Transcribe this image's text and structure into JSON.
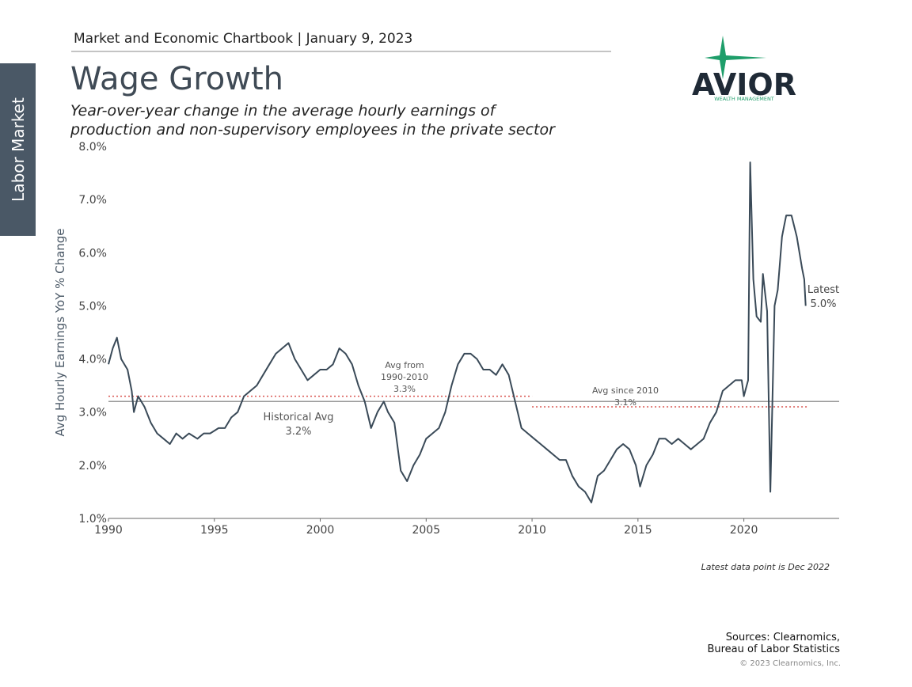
{
  "page": {
    "header": "Market and Economic Chartbook | January 9, 2023",
    "side_tab": "Labor Market",
    "title": "Wage Growth",
    "subtitle": [
      "Year-over-year change in the average hourly earnings of",
      "production and non-supervisory employees in the private sector"
    ],
    "logo": {
      "name": "AVIOR",
      "tagline": "WEALTH MANAGEMENT"
    },
    "footnote": "Latest data point is Dec 2022",
    "sources": [
      "Sources: Clearnomics,",
      "Bureau of Labor Statistics"
    ],
    "copyright": "© 2023 Clearnomics, Inc."
  },
  "chart_data": {
    "type": "line",
    "y_label": "Avg Hourly Earnings YoY % Change",
    "color": "#3a4a58",
    "x": [
      1990.0,
      1990.2,
      1990.4,
      1990.6,
      1990.9,
      1991.1,
      1991.2,
      1991.4,
      1991.7,
      1992.0,
      1992.3,
      1992.6,
      1992.9,
      1993.2,
      1993.5,
      1993.8,
      1994.2,
      1994.5,
      1994.8,
      1995.2,
      1995.5,
      1995.8,
      1996.1,
      1996.4,
      1996.7,
      1997.0,
      1997.3,
      1997.6,
      1997.9,
      1998.2,
      1998.5,
      1998.8,
      1999.1,
      1999.4,
      1999.7,
      2000.0,
      2000.3,
      2000.6,
      2000.9,
      2001.2,
      2001.5,
      2001.8,
      2002.1,
      2002.4,
      2002.7,
      2003.0,
      2003.2,
      2003.5,
      2003.8,
      2004.1,
      2004.4,
      2004.7,
      2005.0,
      2005.3,
      2005.6,
      2005.9,
      2006.2,
      2006.5,
      2006.8,
      2007.1,
      2007.4,
      2007.7,
      2008.0,
      2008.3,
      2008.6,
      2008.9,
      2009.2,
      2009.5,
      2009.8,
      2010.1,
      2010.4,
      2010.7,
      2011.0,
      2011.3,
      2011.6,
      2011.9,
      2012.2,
      2012.5,
      2012.8,
      2013.1,
      2013.4,
      2013.7,
      2014.0,
      2014.3,
      2014.6,
      2014.9,
      2015.1,
      2015.4,
      2015.7,
      2016.0,
      2016.3,
      2016.6,
      2016.9,
      2017.2,
      2017.5,
      2017.8,
      2018.1,
      2018.4,
      2018.7,
      2019.0,
      2019.3,
      2019.6,
      2019.9,
      2020.0,
      2020.2,
      2020.3,
      2020.45,
      2020.6,
      2020.8,
      2020.9,
      2021.1,
      2021.25,
      2021.45,
      2021.6,
      2021.8,
      2021.9,
      2022.0,
      2022.25,
      2022.5,
      2022.75,
      2022.85,
      2022.92
    ],
    "values": [
      3.9,
      4.2,
      4.4,
      4.0,
      3.8,
      3.4,
      3.0,
      3.3,
      3.1,
      2.8,
      2.6,
      2.5,
      2.4,
      2.6,
      2.5,
      2.6,
      2.5,
      2.6,
      2.6,
      2.7,
      2.7,
      2.9,
      3.0,
      3.3,
      3.4,
      3.5,
      3.7,
      3.9,
      4.1,
      4.2,
      4.3,
      4.0,
      3.8,
      3.6,
      3.7,
      3.8,
      3.8,
      3.9,
      4.2,
      4.1,
      3.9,
      3.5,
      3.2,
      2.7,
      3.0,
      3.2,
      3.0,
      2.8,
      1.9,
      1.7,
      2.0,
      2.2,
      2.5,
      2.6,
      2.7,
      3.0,
      3.5,
      3.9,
      4.1,
      4.1,
      4.0,
      3.8,
      3.8,
      3.7,
      3.9,
      3.7,
      3.2,
      2.7,
      2.6,
      2.5,
      2.4,
      2.3,
      2.2,
      2.1,
      2.1,
      1.8,
      1.6,
      1.5,
      1.3,
      1.8,
      1.9,
      2.1,
      2.3,
      2.4,
      2.3,
      2.0,
      1.6,
      2.0,
      2.2,
      2.5,
      2.5,
      2.4,
      2.5,
      2.4,
      2.3,
      2.4,
      2.5,
      2.8,
      3.0,
      3.4,
      3.5,
      3.6,
      3.6,
      3.3,
      3.6,
      7.7,
      5.5,
      4.8,
      4.7,
      5.6,
      4.9,
      1.5,
      5.0,
      5.3,
      6.3,
      6.5,
      6.7,
      6.7,
      6.3,
      5.7,
      5.5,
      5.0
    ],
    "xlim": [
      1990,
      2024.5
    ],
    "ylim": [
      1,
      8
    ],
    "xticks": [
      1990,
      1995,
      2000,
      2005,
      2010,
      2015,
      2020
    ],
    "yticks": [
      {
        "value": 1,
        "label": "1.0%"
      },
      {
        "value": 2,
        "label": "2.0%"
      },
      {
        "value": 3,
        "label": "3.0%"
      },
      {
        "value": 4,
        "label": "4.0%"
      },
      {
        "value": 5,
        "label": "5.0%"
      },
      {
        "value": 6,
        "label": "6.0%"
      },
      {
        "value": 7,
        "label": "7.0%"
      },
      {
        "value": 8,
        "label": "8.0%"
      }
    ],
    "reference_lines": [
      {
        "label": [
          "Historical Avg",
          "3.2%"
        ],
        "value": 3.2,
        "color": "#999999",
        "style": "solid",
        "x_range": [
          1990,
          2024.5
        ]
      },
      {
        "label": [
          "Avg from",
          "1990-2010",
          "3.3%"
        ],
        "value": 3.3,
        "color": "#d9534f",
        "style": "dotted",
        "x_range": [
          1990,
          2010
        ]
      },
      {
        "label": [
          "Avg since 2010",
          "3.1%"
        ],
        "value": 3.1,
        "color": "#d9534f",
        "style": "dotted",
        "x_range": [
          2010,
          2023
        ]
      }
    ],
    "annotation": [
      "Latest",
      "5.0%"
    ]
  }
}
